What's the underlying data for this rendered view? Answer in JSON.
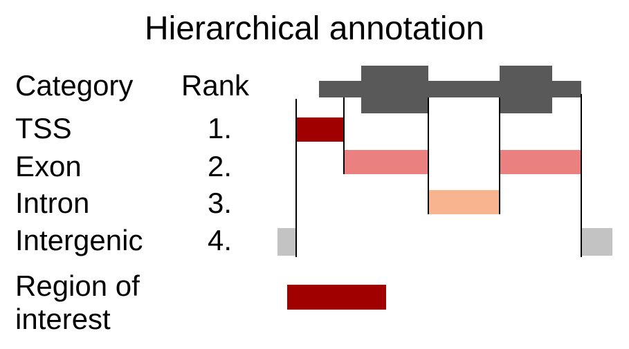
{
  "title": "Hierarchical annotation",
  "table": {
    "header_category": "Category",
    "header_rank": "Rank",
    "rows": [
      {
        "category": "TSS",
        "rank": "1."
      },
      {
        "category": "Exon",
        "rank": "2."
      },
      {
        "category": "Intron",
        "rank": "3."
      },
      {
        "category": "Intergenic",
        "rank": "4."
      }
    ]
  },
  "region_label_line1": "Region of",
  "region_label_line2": "interest",
  "colors": {
    "gene_model": "#595959",
    "tss": "#a00000",
    "exon": "#eb8080",
    "intron": "#f7b48e",
    "intergenic": "#c3c3c3",
    "region_of_interest": "#a00000",
    "boundary_line": "#000000"
  }
}
